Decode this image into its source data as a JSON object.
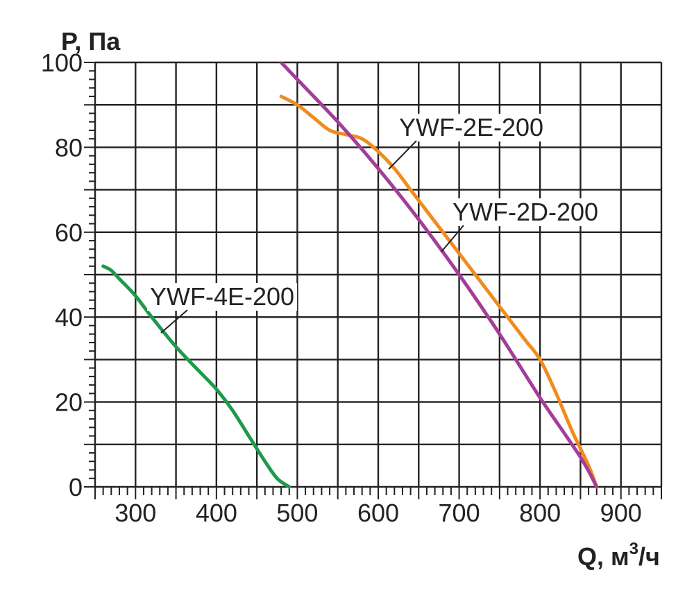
{
  "chart_data": {
    "type": "line",
    "ylabel": "P, Па",
    "xlabel": "Q, м",
    "xlabel_sup": "3",
    "xlabel_tail": "/ч",
    "xlim": [
      250,
      950
    ],
    "ylim": [
      0,
      100
    ],
    "xticks": [
      300,
      400,
      500,
      600,
      700,
      800,
      900
    ],
    "yticks": [
      0,
      20,
      40,
      60,
      80,
      100
    ],
    "grid": true,
    "series": [
      {
        "name": "YWF-4E-200",
        "color": "#1e9a4a",
        "x": [
          260,
          270,
          280,
          300,
          320,
          350,
          380,
          400,
          420,
          440,
          460,
          475,
          490
        ],
        "y": [
          52,
          51,
          49,
          45,
          40,
          33,
          27,
          23,
          18,
          12,
          6,
          2,
          0
        ]
      },
      {
        "name": "YWF-2E-200",
        "color": "#f08c1e",
        "x": [
          480,
          500,
          520,
          540,
          560,
          580,
          600,
          620,
          640,
          660,
          700,
          740,
          780,
          800,
          820,
          840,
          860,
          870
        ],
        "y": [
          92,
          90,
          87,
          84,
          83,
          82,
          79,
          75,
          70,
          65,
          55,
          45,
          35,
          30,
          22,
          13,
          5,
          0
        ]
      },
      {
        "name": "YWF-2D-200",
        "color": "#a43d99",
        "x": [
          475,
          500,
          550,
          600,
          650,
          700,
          750,
          800,
          850,
          870
        ],
        "y": [
          101,
          96,
          86,
          75,
          63,
          50,
          36,
          21,
          7,
          0
        ]
      }
    ],
    "annotations": [
      {
        "text": "YWF-2E-200",
        "series": "YWF-2E-200",
        "at_x": 0.6,
        "at_y": 79
      },
      {
        "text": "YWF-2D-200",
        "series": "YWF-2D-200",
        "at_x": 0.68,
        "at_y": 58
      },
      {
        "text": "YWF-4E-200",
        "series": "YWF-4E-200",
        "at_x": 0.34,
        "at_y": 37
      }
    ]
  }
}
